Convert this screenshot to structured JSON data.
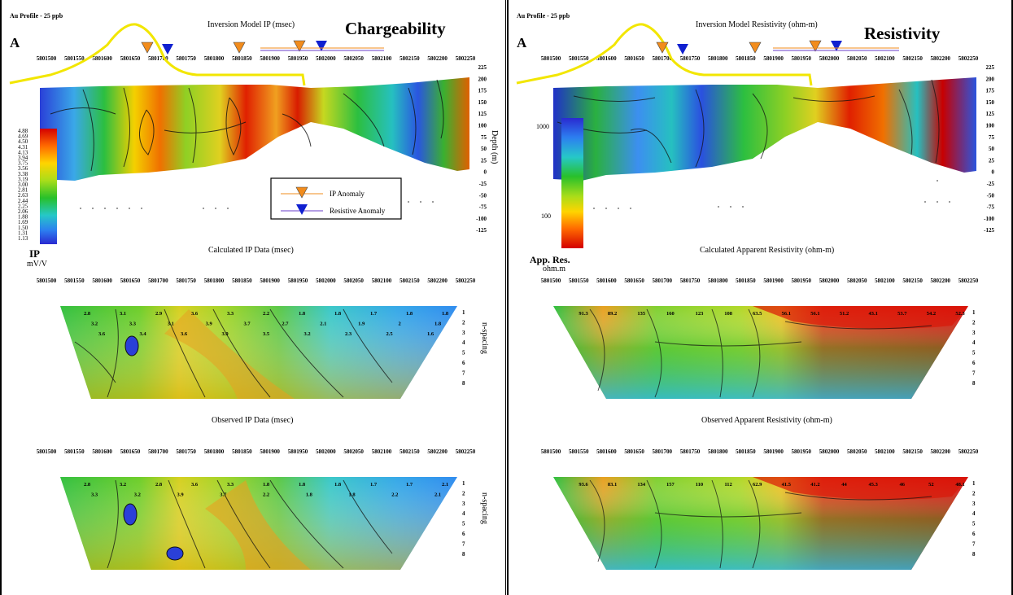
{
  "left": {
    "profile": "Au Profile - 25 ppb",
    "letter": "A",
    "model_title": "Inversion Model IP (msec)",
    "big_title": "Chargeability",
    "calc_title": "Calculated IP Data (msec)",
    "obs_title": "Observed IP Data (msec)",
    "scale_name": "IP",
    "scale_unit": "mV/V",
    "scale_values": [
      "4.88",
      "4.69",
      "4.50",
      "4.31",
      "4.13",
      "3.94",
      "3.75",
      "3.56",
      "3.38",
      "3.19",
      "3.00",
      "2.81",
      "2.63",
      "2.44",
      "2.25",
      "2.06",
      "1.88",
      "1.69",
      "1.50",
      "1.31",
      "1.13"
    ],
    "legend": {
      "ip": "IP Anomaly",
      "res": "Resistive Anomaly"
    }
  },
  "right": {
    "profile": "Au Profile - 25 ppb",
    "letter": "A",
    "model_title": "Inversion Model Resistivity (ohm-m)",
    "big_title": "Resistivity",
    "calc_title": "Calculated Apparent Resistivity (ohm-m)",
    "obs_title": "Observed Apparent Resistivity (ohm-m)",
    "scale_name": "App. Res.",
    "scale_unit": "ohm.m",
    "scale_values": [
      "1000",
      "100"
    ]
  },
  "shared": {
    "x_ticks": [
      "5801500",
      "5801550",
      "5801600",
      "5801650",
      "5801700",
      "5801750",
      "5801800",
      "5801850",
      "5801900",
      "5801950",
      "5802000",
      "5802050",
      "5802100",
      "5802150",
      "5802200",
      "5802250"
    ],
    "depth_ticks": [
      "225",
      "200",
      "175",
      "150",
      "125",
      "100",
      "75",
      "50",
      "25",
      "0",
      "-25",
      "-50",
      "-75",
      "-100",
      "-125"
    ],
    "depth_label": "Depth (m)",
    "nspacing_label": "n-spacing",
    "n_ticks": [
      "1",
      "2",
      "3",
      "4",
      "5",
      "6",
      "7",
      "8"
    ]
  },
  "chart_data": [
    {
      "type": "heatmap",
      "title": "Inversion Model IP (msec)",
      "xlabel": "",
      "ylabel": "Depth (m)",
      "xlim": [
        5801500,
        5802250
      ],
      "ylim": [
        -125,
        225
      ],
      "colorbar": {
        "label": "IP mV/V",
        "min": 1.13,
        "max": 4.88
      },
      "annotations": [
        "IP Anomaly",
        "Resistive Anomaly"
      ]
    },
    {
      "type": "heatmap",
      "title": "Calculated IP Data (msec)",
      "xlim": [
        5801500,
        5802250
      ],
      "ylabel": "n-spacing",
      "n_range": [
        1,
        8
      ],
      "sample_values": {
        "n1": [
          2.8,
          3.1,
          2.9,
          3.6,
          3.3,
          2.2,
          1.8,
          1.8,
          1.7,
          1.8,
          1.8
        ],
        "n2": [
          3.2,
          3.3,
          3.1,
          3.9,
          3.7,
          2.7,
          2.1,
          1.9,
          2.0,
          1.8
        ],
        "n3": [
          3.6,
          3.4,
          3.6,
          3.9,
          3.5,
          3.2,
          2.3,
          2.5,
          1.6
        ]
      }
    },
    {
      "type": "heatmap",
      "title": "Observed IP Data (msec)",
      "xlim": [
        5801500,
        5802250
      ],
      "ylabel": "n-spacing",
      "n_range": [
        1,
        8
      ],
      "sample_values": {
        "n1": [
          2.8,
          3.2,
          2.8,
          3.6,
          3.3,
          1.8,
          1.8,
          1.8,
          1.7,
          1.7,
          2.1
        ],
        "n2": [
          3.3,
          3.2,
          3.9,
          3.7,
          2.2,
          1.8,
          1.8,
          2.2,
          2.1
        ]
      }
    },
    {
      "type": "heatmap",
      "title": "Inversion Model Resistivity (ohm-m)",
      "xlim": [
        5801500,
        5802250
      ],
      "ylim": [
        -125,
        225
      ],
      "colorbar": {
        "label": "App. Res. ohm.m",
        "ticks": [
          100,
          1000
        ],
        "scale": "log"
      }
    },
    {
      "type": "heatmap",
      "title": "Calculated Apparent Resistivity (ohm-m)",
      "xlim": [
        5801500,
        5802250
      ],
      "ylabel": "n-spacing",
      "n_range": [
        1,
        8
      ],
      "sample_values": {
        "n1": [
          91.3,
          89.2,
          135,
          160,
          123,
          108,
          63.5,
          56.1,
          56.1,
          51.2,
          43.1,
          53.7,
          54.2,
          52.3
        ]
      }
    },
    {
      "type": "heatmap",
      "title": "Observed Apparent Resistivity (ohm-m)",
      "xlim": [
        5801500,
        5802250
      ],
      "ylabel": "n-spacing",
      "n_range": [
        1,
        8
      ],
      "sample_values": {
        "n1": [
          93.6,
          83.1,
          134,
          157,
          110,
          112,
          62.9,
          41.5,
          41.2,
          44.0,
          45.3,
          46.0,
          52.0,
          48.1
        ]
      }
    }
  ]
}
